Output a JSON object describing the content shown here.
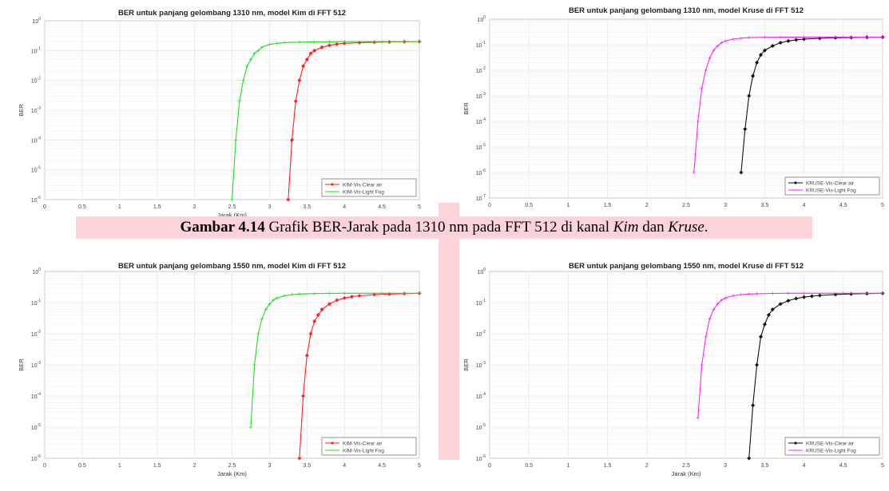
{
  "caption": {
    "label": "Gambar 4.14",
    "text_before": " Grafik BER-Jarak pada 1310 nm pada FFT 512 di kanal ",
    "kim": "Kim",
    "dan": " dan ",
    "kruse": "Kruse",
    "end": "."
  },
  "colors": {
    "highlight": "#fbd3d8",
    "clear_air_kim": "#ff2020",
    "light_fog_kim": "#20dd20",
    "clear_air_kruse": "#111111",
    "light_fog_kruse": "#ff22ff",
    "grid": "#e6e6e6"
  },
  "chart_data": [
    {
      "type": "line",
      "title": "BER untuk panjang gelombang 1310 nm, model Kim di FFT 512",
      "xlabel": "Jarak (Km)",
      "ylabel": "BER",
      "xlim": [
        0,
        5
      ],
      "ylim": [
        1e-06,
        1
      ],
      "yscale": "log",
      "xticks": [
        "0",
        "0.5",
        "1",
        "1.5",
        "2",
        "2.5",
        "3",
        "3.5",
        "4",
        "4.5",
        "5"
      ],
      "yticks": [
        "10^0",
        "10^-1",
        "10^-2",
        "10^-3",
        "10^-4",
        "10^-5",
        "10^-6"
      ],
      "grid": true,
      "legend_position": "bottom-right",
      "series": [
        {
          "name": "KIM-Vis-Clear air",
          "marker": "*",
          "x": [
            3.25,
            3.3,
            3.35,
            3.4,
            3.45,
            3.5,
            3.55,
            3.6,
            3.7,
            3.8,
            3.9,
            4.0,
            4.2,
            4.4,
            4.6,
            4.8,
            5.0
          ],
          "y": [
            1e-06,
            0.0001,
            0.002,
            0.01,
            0.03,
            0.05,
            0.08,
            0.1,
            0.13,
            0.15,
            0.165,
            0.175,
            0.185,
            0.19,
            0.195,
            0.198,
            0.2
          ]
        },
        {
          "name": "KIM-Vis-Light Fog",
          "marker": "+",
          "x": [
            2.5,
            2.55,
            2.6,
            2.65,
            2.7,
            2.75,
            2.8,
            2.85,
            2.9,
            3.0,
            3.1,
            3.2,
            3.4,
            3.6,
            3.8,
            4.0,
            4.5,
            5.0
          ],
          "y": [
            1e-06,
            0.0001,
            0.002,
            0.01,
            0.03,
            0.05,
            0.08,
            0.1,
            0.13,
            0.16,
            0.175,
            0.185,
            0.192,
            0.196,
            0.198,
            0.2,
            0.2,
            0.2
          ]
        }
      ]
    },
    {
      "type": "line",
      "title": "BER untuk panjang gelombang 1310 nm, model Kruse di FFT 512",
      "xlabel": "",
      "ylabel": "BER",
      "xlim": [
        0,
        5
      ],
      "ylim": [
        1e-07,
        1
      ],
      "yscale": "log",
      "xticks": [
        "0",
        "0.5",
        "1",
        "1.5",
        "2",
        "2.5",
        "3",
        "3.5",
        "4",
        "4.5",
        "5"
      ],
      "yticks": [
        "10^0",
        "10^-1",
        "10^-2",
        "10^-3",
        "10^-4",
        "10^-5",
        "10^-6",
        "10^-7"
      ],
      "grid": true,
      "legend_position": "bottom-right",
      "series": [
        {
          "name": "KRUSE-Vis-Clear air",
          "marker": "*",
          "x": [
            3.2,
            3.25,
            3.3,
            3.35,
            3.4,
            3.45,
            3.5,
            3.6,
            3.7,
            3.8,
            3.9,
            4.0,
            4.2,
            4.4,
            4.6,
            4.8,
            5.0
          ],
          "y": [
            1e-06,
            5e-05,
            0.001,
            0.006,
            0.02,
            0.04,
            0.06,
            0.09,
            0.12,
            0.14,
            0.155,
            0.165,
            0.178,
            0.187,
            0.192,
            0.196,
            0.198
          ]
        },
        {
          "name": "KRUSE-Vis-Light Fog",
          "marker": "+",
          "x": [
            2.6,
            2.65,
            2.7,
            2.75,
            2.8,
            2.85,
            2.9,
            2.95,
            3.0,
            3.1,
            3.2,
            3.3,
            3.5,
            3.7,
            4.0,
            4.5,
            5.0
          ],
          "y": [
            1e-06,
            0.0001,
            0.002,
            0.01,
            0.03,
            0.06,
            0.09,
            0.12,
            0.14,
            0.165,
            0.18,
            0.188,
            0.195,
            0.198,
            0.2,
            0.2,
            0.2
          ]
        }
      ]
    },
    {
      "type": "line",
      "title": "BER untuk panjang gelombang 1550 nm, model Kim di FFT 512",
      "xlabel": "Jarak (Km)",
      "ylabel": "BER",
      "xlim": [
        0,
        5
      ],
      "ylim": [
        1e-06,
        1
      ],
      "yscale": "log",
      "xticks": [
        "0",
        "0.5",
        "1",
        "1.5",
        "2",
        "2.5",
        "3",
        "3.5",
        "4",
        "4.5",
        "5"
      ],
      "yticks": [
        "10^0",
        "10^-1",
        "10^-2",
        "10^-3",
        "10^-4",
        "10^-5",
        "10^-6"
      ],
      "grid": true,
      "legend_position": "bottom-right",
      "series": [
        {
          "name": "KIM-Vis-Clear air",
          "marker": "*",
          "x": [
            3.4,
            3.45,
            3.5,
            3.55,
            3.6,
            3.65,
            3.7,
            3.8,
            3.9,
            4.0,
            4.1,
            4.2,
            4.4,
            4.6,
            4.8,
            5.0
          ],
          "y": [
            1e-06,
            0.0001,
            0.002,
            0.01,
            0.025,
            0.04,
            0.06,
            0.09,
            0.12,
            0.14,
            0.155,
            0.165,
            0.18,
            0.188,
            0.194,
            0.198
          ]
        },
        {
          "name": "KIM-Vis-Light Fog",
          "marker": "+",
          "x": [
            2.75,
            2.8,
            2.85,
            2.9,
            2.95,
            3.0,
            3.05,
            3.1,
            3.2,
            3.3,
            3.4,
            3.6,
            3.8,
            4.0,
            4.5,
            5.0
          ],
          "y": [
            1e-05,
            0.001,
            0.01,
            0.03,
            0.06,
            0.09,
            0.12,
            0.14,
            0.165,
            0.18,
            0.188,
            0.195,
            0.198,
            0.2,
            0.2,
            0.2
          ]
        }
      ]
    },
    {
      "type": "line",
      "title": "BER untuk panjang gelombang 1550 nm, model Kruse di FFT 512",
      "xlabel": "Jarak (Km)",
      "ylabel": "BER",
      "xlim": [
        0,
        5
      ],
      "ylim": [
        1e-06,
        1
      ],
      "yscale": "log",
      "xticks": [
        "0",
        "0.5",
        "1",
        "1.5",
        "2",
        "2.5",
        "3",
        "3.5",
        "4",
        "4.5",
        "5"
      ],
      "yticks": [
        "10^0",
        "10^-1",
        "10^-2",
        "10^-3",
        "10^-4",
        "10^-5",
        "10^-6"
      ],
      "grid": true,
      "legend_position": "bottom-right",
      "series": [
        {
          "name": "KRUSE-Vis-Clear air",
          "marker": "*",
          "x": [
            3.3,
            3.35,
            3.4,
            3.45,
            3.5,
            3.55,
            3.6,
            3.7,
            3.8,
            3.9,
            4.0,
            4.1,
            4.2,
            4.4,
            4.6,
            4.8,
            5.0
          ],
          "y": [
            1e-06,
            5e-05,
            0.001,
            0.008,
            0.02,
            0.04,
            0.06,
            0.09,
            0.115,
            0.135,
            0.15,
            0.16,
            0.17,
            0.182,
            0.19,
            0.195,
            0.198
          ]
        },
        {
          "name": "KRUSE-Vis-Light Fog",
          "marker": "+",
          "x": [
            2.65,
            2.7,
            2.75,
            2.8,
            2.85,
            2.9,
            2.95,
            3.0,
            3.1,
            3.2,
            3.3,
            3.4,
            3.6,
            3.8,
            4.0,
            4.5,
            5.0
          ],
          "y": [
            2e-05,
            0.001,
            0.008,
            0.03,
            0.06,
            0.09,
            0.12,
            0.14,
            0.165,
            0.18,
            0.188,
            0.193,
            0.197,
            0.199,
            0.2,
            0.2,
            0.2
          ]
        }
      ]
    }
  ]
}
